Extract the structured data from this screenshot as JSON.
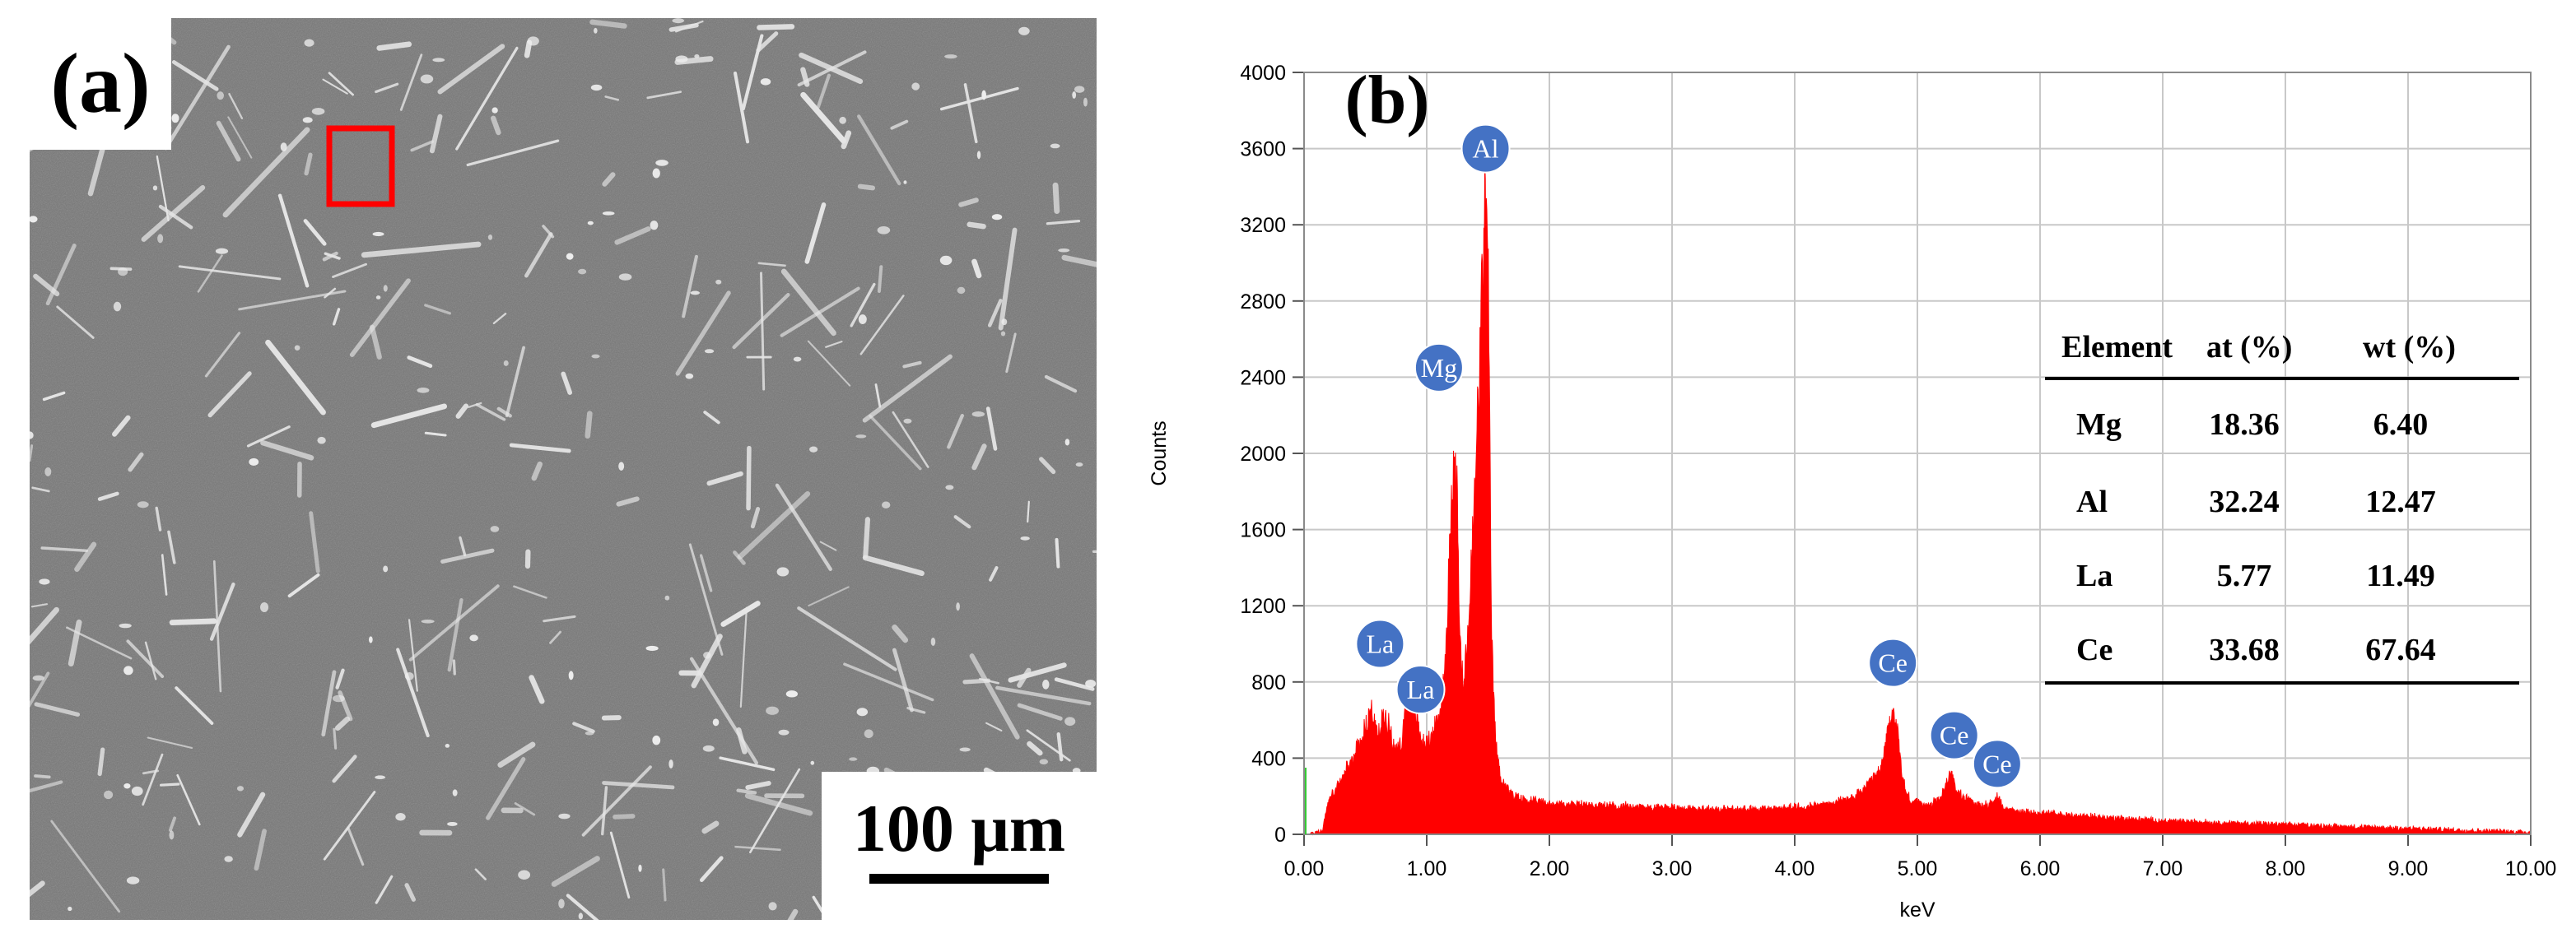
{
  "panel_a": {
    "label": "(a)",
    "scale_bar": "100 μm"
  },
  "panel_b": {
    "label": "(b)",
    "colors": {
      "spectrum": "#ff0000",
      "badge": "#4472c4",
      "grid": "#c8c8c8"
    }
  },
  "chart_data": {
    "type": "area",
    "xlabel": "keV",
    "ylabel": "Counts",
    "xlim": [
      0,
      10
    ],
    "ylim": [
      0,
      4000
    ],
    "x_ticks": [
      "0.00",
      "1.00",
      "2.00",
      "3.00",
      "4.00",
      "5.00",
      "6.00",
      "7.00",
      "8.00",
      "9.00",
      "10.00"
    ],
    "y_ticks": [
      "0",
      "400",
      "800",
      "1200",
      "1600",
      "2000",
      "2400",
      "2800",
      "3200",
      "3600",
      "4000"
    ],
    "grid": true,
    "series": [
      {
        "x": [
          0.05,
          0.15,
          0.2,
          0.3,
          0.4,
          0.5,
          0.55,
          0.6,
          0.65,
          0.7,
          0.75,
          0.8,
          0.85,
          0.9,
          0.95,
          1.0,
          1.05,
          1.1,
          1.15,
          1.2,
          1.23,
          1.25,
          1.27,
          1.3,
          1.35,
          1.4,
          1.45,
          1.48,
          1.5,
          1.53,
          1.56,
          1.6,
          1.65,
          1.7,
          1.8,
          2.0,
          2.5,
          3.0,
          3.5,
          4.0,
          4.3,
          4.5,
          4.6,
          4.7,
          4.75,
          4.8,
          4.83,
          4.86,
          4.9,
          4.95,
          5.0,
          5.1,
          5.2,
          5.25,
          5.28,
          5.32,
          5.4,
          5.5,
          5.6,
          5.65,
          5.7,
          5.8,
          6.0,
          6.5,
          7.0,
          8.0,
          9.0,
          9.5,
          10.0
        ],
        "y": [
          0,
          20,
          180,
          280,
          400,
          560,
          650,
          500,
          630,
          560,
          420,
          500,
          820,
          680,
          500,
          470,
          530,
          600,
          900,
          1650,
          2150,
          1700,
          1000,
          750,
          1200,
          1900,
          2800,
          3350,
          2900,
          1000,
          500,
          300,
          250,
          200,
          180,
          160,
          150,
          140,
          130,
          140,
          160,
          200,
          260,
          330,
          500,
          650,
          580,
          400,
          230,
          170,
          170,
          150,
          200,
          290,
          320,
          230,
          180,
          150,
          160,
          190,
          140,
          120,
          110,
          90,
          70,
          50,
          30,
          20,
          10
        ]
      }
    ],
    "peak_labels": [
      {
        "text": "Al",
        "x": 1.48,
        "y": 3600
      },
      {
        "text": "Mg",
        "x": 1.1,
        "y": 2450
      },
      {
        "text": "La",
        "x": 0.62,
        "y": 1000
      },
      {
        "text": "La",
        "x": 0.95,
        "y": 760
      },
      {
        "text": "Ce",
        "x": 4.8,
        "y": 900
      },
      {
        "text": "Ce",
        "x": 5.3,
        "y": 520
      },
      {
        "text": "Ce",
        "x": 5.65,
        "y": 370
      }
    ],
    "table": {
      "headers": [
        "Element",
        "at (%)",
        "wt (%)"
      ],
      "rows": [
        [
          "Mg",
          "18.36",
          "6.40"
        ],
        [
          "Al",
          "32.24",
          "12.47"
        ],
        [
          "La",
          "5.77",
          "11.49"
        ],
        [
          "Ce",
          "33.68",
          "67.64"
        ]
      ]
    }
  }
}
